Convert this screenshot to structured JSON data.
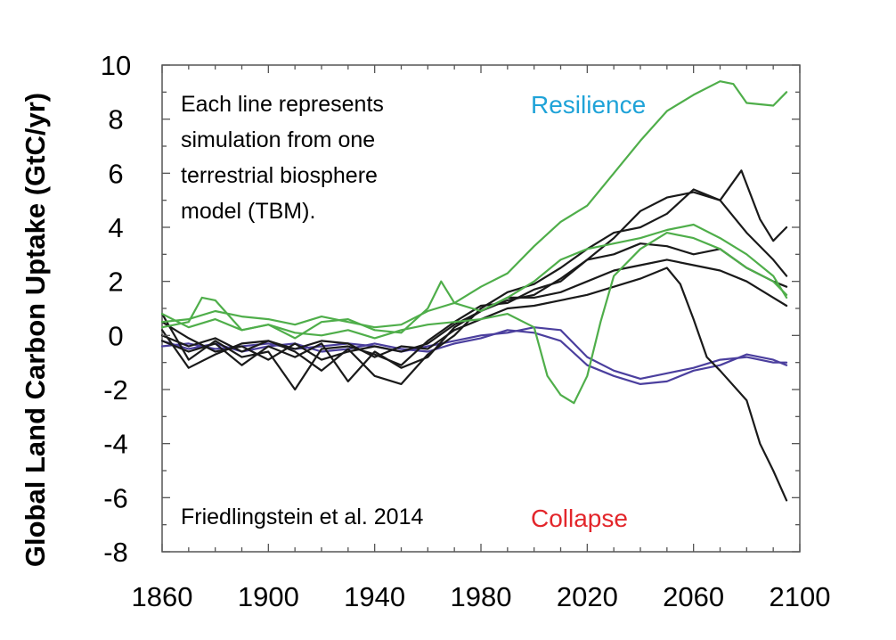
{
  "chart_data": {
    "type": "line",
    "title": "",
    "xlabel": "",
    "ylabel": "Global Land Carbon Uptake (GtC/yr)",
    "xlim": [
      1860,
      2100
    ],
    "ylim": [
      -8,
      10
    ],
    "x_ticks": [
      1860,
      1900,
      1940,
      1980,
      2020,
      2060,
      2100
    ],
    "y_ticks": [
      -8,
      -6,
      -4,
      -2,
      0,
      2,
      4,
      6,
      8,
      10
    ],
    "x_tick_labels": [
      "1860",
      "1900",
      "1940",
      "1980",
      "2020",
      "2060",
      "2100"
    ],
    "y_tick_labels": [
      "-8",
      "-6",
      "-4",
      "-2",
      "0",
      "2",
      "4",
      "6",
      "8",
      "10"
    ],
    "grid": false,
    "annotations": {
      "description": [
        "Each line represents",
        "simulation from one",
        "terrestrial biosphere",
        "model (TBM)."
      ],
      "resilience": "Resilience",
      "collapse": "Collapse",
      "citation": "Friedlingstein et al. 2014"
    },
    "colors": {
      "green": "#4fae4a",
      "black": "#1a1a1a",
      "purple": "#4b3f9e",
      "resilience": "#1fa3d8",
      "collapse": "#e3262b"
    },
    "series": [
      {
        "color": "green",
        "x": [
          1860,
          1870,
          1880,
          1890,
          1900,
          1910,
          1920,
          1930,
          1940,
          1950,
          1960,
          1970,
          1980,
          1990,
          2000,
          2010,
          2020,
          2030,
          2040,
          2050,
          2060,
          2070,
          2075,
          2080,
          2090,
          2095
        ],
        "y": [
          0.5,
          0.6,
          0.9,
          0.7,
          0.6,
          0.4,
          0.7,
          0.5,
          0.3,
          0.4,
          0.9,
          1.2,
          1.8,
          2.3,
          3.3,
          4.2,
          4.8,
          6.0,
          7.2,
          8.3,
          8.9,
          9.4,
          9.3,
          8.6,
          8.5,
          9.0
        ]
      },
      {
        "color": "green",
        "x": [
          1860,
          1870,
          1880,
          1890,
          1900,
          1910,
          1920,
          1930,
          1940,
          1950,
          1960,
          1965,
          1970,
          1980,
          1990,
          2000,
          2010,
          2020,
          2030,
          2040,
          2050,
          2060,
          2070,
          2080,
          2090,
          2095
        ],
        "y": [
          0.8,
          0.3,
          0.6,
          0.2,
          0.4,
          -0.1,
          0.5,
          0.6,
          0.2,
          0.1,
          1.0,
          2.0,
          1.2,
          0.9,
          1.4,
          2.0,
          2.8,
          3.2,
          3.4,
          3.6,
          3.9,
          4.1,
          3.6,
          3.0,
          2.2,
          1.4
        ]
      },
      {
        "color": "green",
        "x": [
          1860,
          1870,
          1875,
          1880,
          1890,
          1900,
          1910,
          1920,
          1930,
          1940,
          1950,
          1960,
          1970,
          1980,
          1990,
          2000,
          2005,
          2010,
          2015,
          2020,
          2025,
          2030,
          2040,
          2050,
          2060,
          2070,
          2080,
          2090,
          2095
        ],
        "y": [
          0.3,
          0.5,
          1.4,
          1.3,
          0.2,
          0.4,
          0.1,
          0.0,
          0.2,
          -0.1,
          0.2,
          0.4,
          0.5,
          0.6,
          0.8,
          0.3,
          -1.5,
          -2.2,
          -2.5,
          -1.5,
          0.5,
          2.2,
          3.2,
          3.8,
          3.6,
          3.2,
          2.5,
          2.0,
          1.5
        ]
      },
      {
        "color": "black",
        "x": [
          1860,
          1870,
          1880,
          1890,
          1900,
          1910,
          1920,
          1930,
          1940,
          1950,
          1960,
          1970,
          1980,
          1990,
          2000,
          2010,
          2020,
          2030,
          2040,
          2050,
          2060,
          2070,
          2078,
          2085,
          2090,
          2095
        ],
        "y": [
          0.8,
          -0.9,
          -0.2,
          -0.8,
          -0.6,
          -2.0,
          -0.5,
          -0.4,
          -0.7,
          -1.1,
          -0.2,
          0.5,
          1.1,
          1.2,
          1.7,
          2.0,
          2.8,
          3.6,
          4.6,
          5.1,
          5.3,
          5.0,
          6.1,
          4.3,
          3.5,
          4.0
        ]
      },
      {
        "color": "black",
        "x": [
          1860,
          1870,
          1880,
          1890,
          1900,
          1910,
          1920,
          1930,
          1940,
          1950,
          1960,
          1970,
          1980,
          1990,
          2000,
          2010,
          2020,
          2030,
          2040,
          2050,
          2060,
          2070,
          2080,
          2090,
          2095
        ],
        "y": [
          0.2,
          -1.2,
          -0.7,
          -0.3,
          -0.2,
          -0.6,
          -1.3,
          -0.5,
          -1.5,
          -1.8,
          -0.7,
          0.0,
          1.0,
          1.6,
          1.9,
          2.5,
          3.2,
          3.8,
          4.0,
          4.5,
          5.4,
          5.0,
          3.8,
          2.8,
          2.2
        ]
      },
      {
        "color": "black",
        "x": [
          1860,
          1870,
          1880,
          1890,
          1900,
          1910,
          1920,
          1930,
          1940,
          1950,
          1960,
          1970,
          1980,
          1990,
          2000,
          2010,
          2020,
          2030,
          2040,
          2050,
          2060,
          2070,
          2080,
          2090,
          2095
        ],
        "y": [
          -0.2,
          -0.6,
          -0.3,
          -1.1,
          -0.4,
          -0.8,
          -0.3,
          -1.7,
          -0.6,
          -1.2,
          -0.8,
          0.3,
          0.9,
          1.3,
          1.5,
          2.1,
          2.8,
          3.0,
          3.4,
          3.3,
          3.0,
          3.2,
          2.5,
          2.0,
          1.8
        ]
      },
      {
        "color": "black",
        "x": [
          1860,
          1870,
          1880,
          1890,
          1900,
          1910,
          1920,
          1930,
          1940,
          1950,
          1960,
          1970,
          1980,
          1990,
          2000,
          2010,
          2020,
          2030,
          2040,
          2050,
          2060,
          2070,
          2080,
          2090,
          2095
        ],
        "y": [
          0.5,
          -0.1,
          -0.6,
          -0.4,
          -0.9,
          -0.3,
          -0.9,
          -0.6,
          -0.4,
          -0.6,
          -0.3,
          0.4,
          0.9,
          1.4,
          1.4,
          1.6,
          2.0,
          2.4,
          2.6,
          2.8,
          2.6,
          2.4,
          2.0,
          1.4,
          1.1
        ]
      },
      {
        "color": "black",
        "x": [
          1860,
          1870,
          1880,
          1890,
          1900,
          1910,
          1920,
          1930,
          1940,
          1950,
          1960,
          1970,
          1980,
          1990,
          2000,
          2010,
          2020,
          2030,
          2040,
          2050,
          2055,
          2060,
          2065,
          2070,
          2080,
          2085,
          2090,
          2095
        ],
        "y": [
          0.0,
          -0.4,
          -0.1,
          -0.6,
          -0.2,
          -0.5,
          -0.2,
          -0.3,
          -0.8,
          -0.4,
          -0.5,
          0.2,
          0.6,
          1.0,
          1.1,
          1.3,
          1.5,
          1.8,
          2.1,
          2.5,
          1.9,
          0.6,
          -0.8,
          -1.3,
          -2.4,
          -4.0,
          -5.0,
          -6.1
        ]
      },
      {
        "color": "purple",
        "x": [
          1860,
          1870,
          1880,
          1890,
          1900,
          1910,
          1920,
          1930,
          1940,
          1950,
          1960,
          1970,
          1980,
          1990,
          2000,
          2010,
          2020,
          2030,
          2040,
          2050,
          2060,
          2070,
          2080,
          2090,
          2095
        ],
        "y": [
          -0.4,
          -0.3,
          -0.5,
          -0.4,
          -0.3,
          -0.5,
          -0.4,
          -0.3,
          -0.4,
          -0.6,
          -0.4,
          -0.2,
          0.0,
          0.1,
          0.3,
          0.2,
          -0.8,
          -1.3,
          -1.6,
          -1.4,
          -1.2,
          -0.9,
          -0.8,
          -1.0,
          -1.0
        ]
      },
      {
        "color": "purple",
        "x": [
          1860,
          1870,
          1880,
          1890,
          1900,
          1910,
          1920,
          1930,
          1940,
          1950,
          1960,
          1970,
          1980,
          1990,
          2000,
          2010,
          2020,
          2030,
          2040,
          2050,
          2060,
          2070,
          2080,
          2090,
          2095
        ],
        "y": [
          -0.2,
          -0.5,
          -0.3,
          -0.6,
          -0.4,
          -0.3,
          -0.6,
          -0.5,
          -0.3,
          -0.5,
          -0.6,
          -0.3,
          -0.1,
          0.2,
          0.1,
          -0.2,
          -1.1,
          -1.5,
          -1.8,
          -1.7,
          -1.3,
          -1.1,
          -0.7,
          -0.9,
          -1.1
        ]
      }
    ]
  }
}
